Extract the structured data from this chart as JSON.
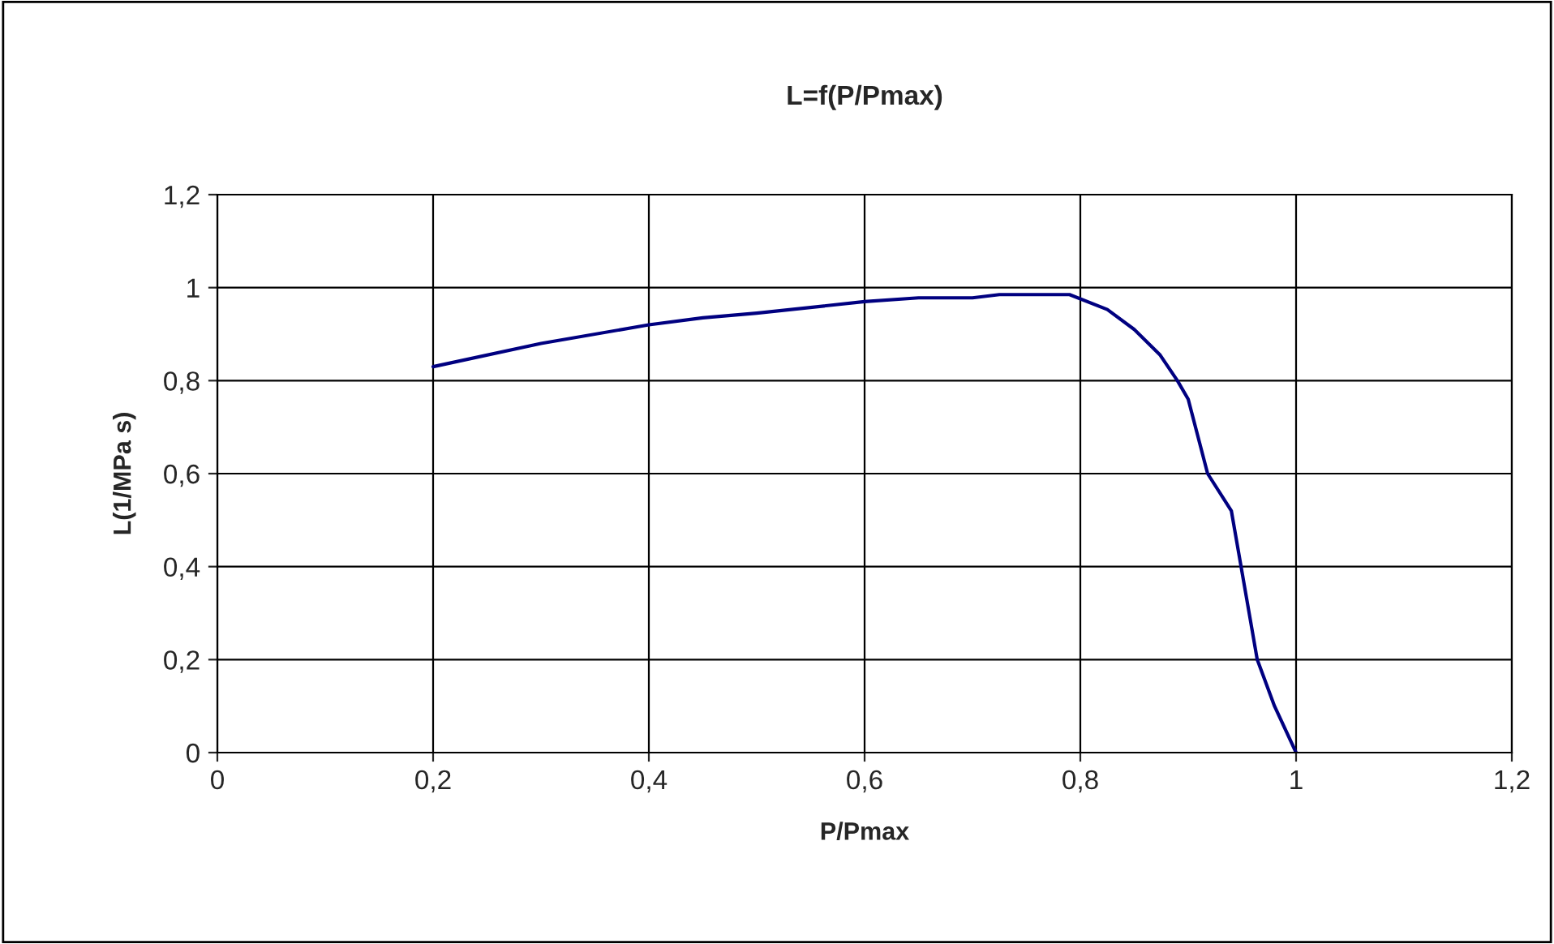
{
  "chart_data": {
    "type": "line",
    "title": "L=f(P/Pmax)",
    "xlabel": "P/Pmax",
    "ylabel": "L(1/MPa s)",
    "x": [
      0.2,
      0.3,
      0.4,
      0.45,
      0.5,
      0.6,
      0.65,
      0.7,
      0.725,
      0.79,
      0.825,
      0.85,
      0.874,
      0.89,
      0.9,
      0.918,
      0.94,
      0.964,
      0.98,
      1.0
    ],
    "series": [
      {
        "color": "#000080",
        "values": [
          0.83,
          0.88,
          0.92,
          0.935,
          0.945,
          0.97,
          0.978,
          0.978,
          0.985,
          0.985,
          0.953,
          0.91,
          0.855,
          0.8,
          0.76,
          0.6,
          0.52,
          0.2,
          0.1,
          0.0
        ]
      }
    ],
    "xlim": [
      0,
      1.2
    ],
    "ylim": [
      0,
      1.2
    ],
    "xticks": [
      0,
      {
        "value": 0.2,
        "label": "0,2"
      },
      {
        "value": 0.4,
        "label": "0,4"
      },
      {
        "value": 0.6,
        "label": "0,6"
      },
      {
        "value": 0.8,
        "label": "0,8"
      },
      1,
      {
        "value": 1.2,
        "label": "1,2"
      }
    ],
    "yticks": [
      0,
      {
        "value": 0.2,
        "label": "0,2"
      },
      {
        "value": 0.4,
        "label": "0,4"
      },
      {
        "value": 0.6,
        "label": "0,6"
      },
      {
        "value": 0.8,
        "label": "0,8"
      },
      1,
      {
        "value": 1.2,
        "label": "1,2"
      }
    ],
    "grid": true,
    "marker": "none",
    "line_style": "solid"
  }
}
